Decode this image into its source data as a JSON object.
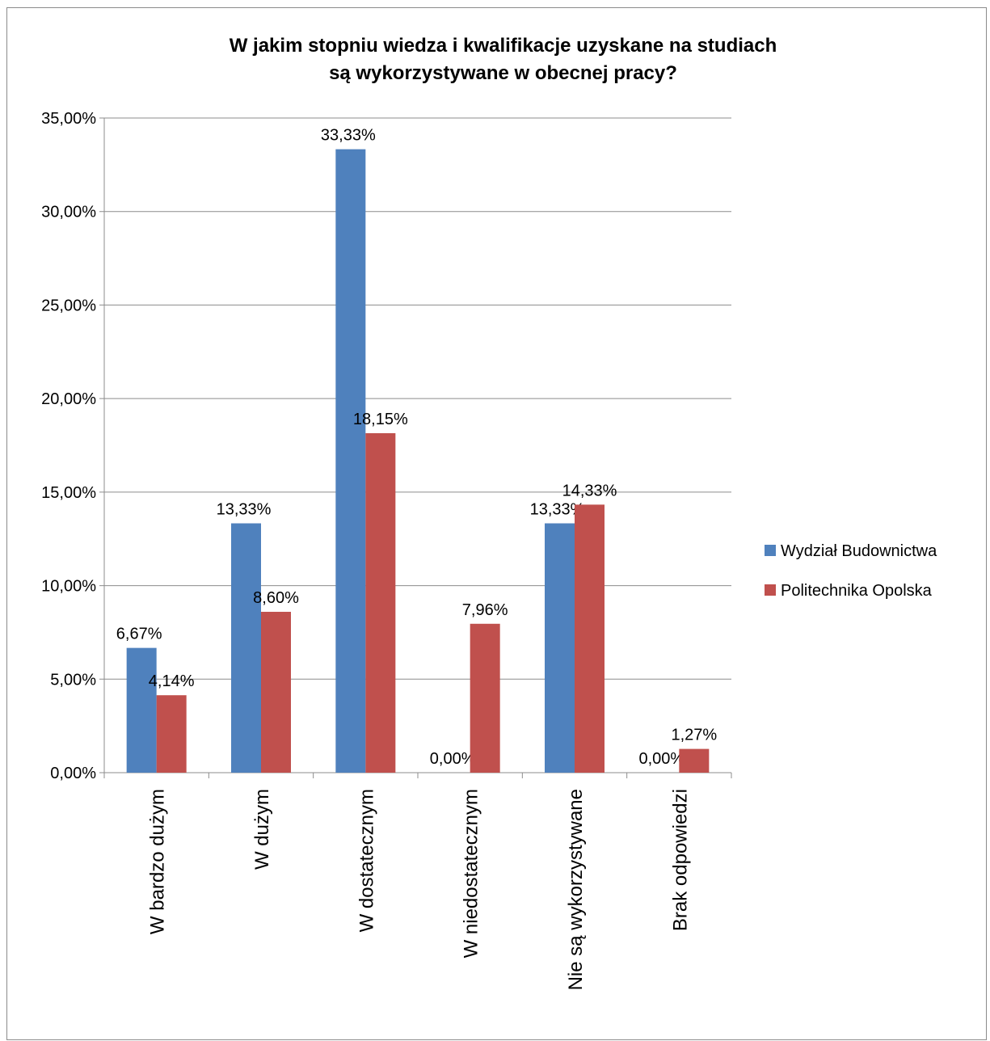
{
  "chart_data": {
    "type": "bar",
    "title_line1": "W jakim stopniu wiedza i kwalifikacje uzyskane na studiach",
    "title_line2": "są wykorzystywane w obecnej pracy?",
    "categories": [
      "W bardzo dużym",
      "W dużym",
      "W dostatecznym",
      "W niedostatecznym",
      "Nie są wykorzystywane",
      "Brak odpowiedzi"
    ],
    "series": [
      {
        "name": "Wydział Budownictwa",
        "color": "#4f81bd",
        "values": [
          6.67,
          13.33,
          33.33,
          0.0,
          13.33,
          0.0
        ],
        "labels": [
          "6,67%",
          "13,33%",
          "33,33%",
          "0,00%",
          "13,33%",
          "0,00%"
        ]
      },
      {
        "name": "Politechnika Opolska",
        "color": "#c0504d",
        "values": [
          4.14,
          8.6,
          18.15,
          7.96,
          14.33,
          1.27
        ],
        "labels": [
          "4,14%",
          "8,60%",
          "18,15%",
          "7,96%",
          "14,33%",
          "1,27%"
        ]
      }
    ],
    "yticks": [
      "0,00%",
      "5,00%",
      "10,00%",
      "15,00%",
      "20,00%",
      "25,00%",
      "30,00%",
      "35,00%"
    ],
    "ylim": [
      0,
      35
    ],
    "grid": true,
    "legend_position": "right"
  }
}
